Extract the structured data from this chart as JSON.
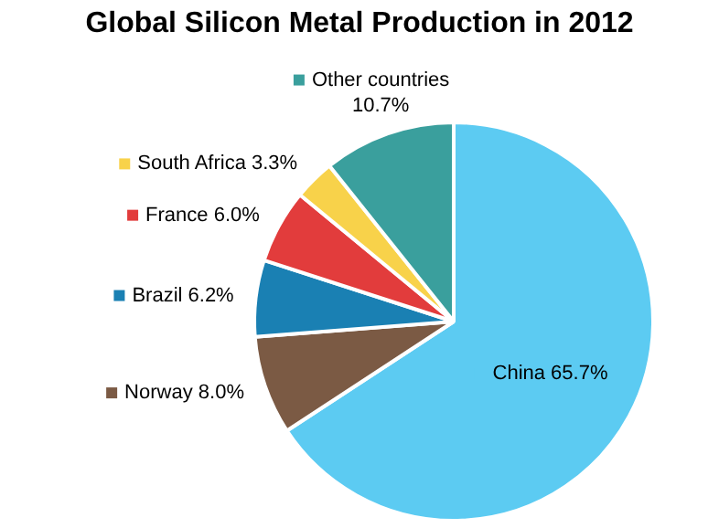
{
  "chart_data": {
    "type": "pie",
    "title": "Global Silicon Metal Production in 2012",
    "categories": [
      "China",
      "Norway",
      "Brazil",
      "France",
      "South Africa",
      "Other countries"
    ],
    "values": [
      65.7,
      8.0,
      6.2,
      6.0,
      3.3,
      10.7
    ],
    "value_labels": [
      "65.7%",
      "8.0%",
      "6.2%",
      "6.0%",
      "3.3%",
      "10.7%"
    ],
    "colors": [
      "#5ccbf2",
      "#7b5a44",
      "#1a80b3",
      "#e23c3c",
      "#f8d24a",
      "#3a9f9d"
    ],
    "legend": "left"
  }
}
